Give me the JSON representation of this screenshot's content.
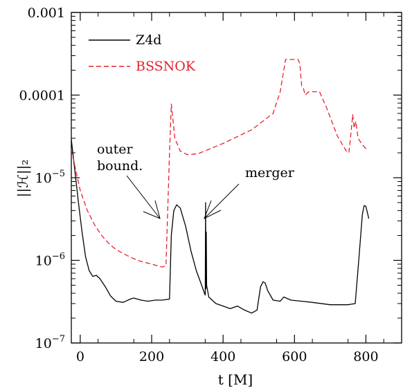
{
  "chart_data": {
    "type": "line",
    "title": "",
    "xlabel": "t [M]",
    "ylabel": "||ℋ||₂",
    "xlim": [
      -25,
      900
    ],
    "ylim": [
      1e-07,
      0.001
    ],
    "y_scale": "log",
    "grid": false,
    "legend_position": "top-left",
    "x_ticks": [
      {
        "value": 0,
        "label": "0"
      },
      {
        "value": 200,
        "label": "200"
      },
      {
        "value": 400,
        "label": "400"
      },
      {
        "value": 600,
        "label": "600"
      },
      {
        "value": 800,
        "label": "800"
      }
    ],
    "y_ticks": [
      {
        "value": 0.001,
        "label": "0.001",
        "sup": ""
      },
      {
        "value": 0.0001,
        "label": "0.0001",
        "sup": ""
      },
      {
        "value": 1e-05,
        "label": "10",
        "sup": "−5"
      },
      {
        "value": 1e-06,
        "label": "10",
        "sup": "−6"
      },
      {
        "value": 1e-07,
        "label": "10",
        "sup": "−7"
      }
    ],
    "series": [
      {
        "name": "Z4d",
        "color": "#000000",
        "style": "solid",
        "points": [
          [
            -25,
            2.9e-05
          ],
          [
            -15,
            1.2e-05
          ],
          [
            -5,
            5e-06
          ],
          [
            5,
            2.2e-06
          ],
          [
            15,
            1.1e-06
          ],
          [
            25,
            7.5e-07
          ],
          [
            35,
            6.4e-07
          ],
          [
            45,
            6.6e-07
          ],
          [
            55,
            6e-07
          ],
          [
            70,
            4.8e-07
          ],
          [
            85,
            3.7e-07
          ],
          [
            100,
            3.2e-07
          ],
          [
            120,
            3.1e-07
          ],
          [
            140,
            3.4e-07
          ],
          [
            150,
            3.5e-07
          ],
          [
            170,
            3.3e-07
          ],
          [
            190,
            3.2e-07
          ],
          [
            210,
            3.3e-07
          ],
          [
            230,
            3.3e-07
          ],
          [
            250,
            3.4e-07
          ],
          [
            255,
            2e-06
          ],
          [
            262,
            4e-06
          ],
          [
            270,
            4.7e-06
          ],
          [
            280,
            4.3e-06
          ],
          [
            295,
            2.6e-06
          ],
          [
            310,
            1.3e-06
          ],
          [
            325,
            7.5e-07
          ],
          [
            340,
            5e-07
          ],
          [
            348,
            4e-07
          ],
          [
            350,
            3.8e-07
          ],
          [
            351,
            5e-06
          ],
          [
            352,
            4.5e-07
          ],
          [
            353,
            2.2e-06
          ],
          [
            354,
            5e-07
          ],
          [
            360,
            3.6e-07
          ],
          [
            380,
            3e-07
          ],
          [
            400,
            2.8e-07
          ],
          [
            420,
            2.6e-07
          ],
          [
            440,
            2.8e-07
          ],
          [
            460,
            2.5e-07
          ],
          [
            480,
            2.3e-07
          ],
          [
            495,
            2.5e-07
          ],
          [
            505,
            4.8e-07
          ],
          [
            512,
            5.5e-07
          ],
          [
            518,
            5.3e-07
          ],
          [
            525,
            4.3e-07
          ],
          [
            540,
            3.3e-07
          ],
          [
            560,
            3.2e-07
          ],
          [
            570,
            3.6e-07
          ],
          [
            590,
            3.3e-07
          ],
          [
            620,
            3.2e-07
          ],
          [
            650,
            3.1e-07
          ],
          [
            700,
            2.9e-07
          ],
          [
            750,
            2.9e-07
          ],
          [
            770,
            3e-07
          ],
          [
            780,
            1e-06
          ],
          [
            790,
            3.6e-06
          ],
          [
            795,
            4.6e-06
          ],
          [
            800,
            4.5e-06
          ],
          [
            808,
            3.2e-06
          ]
        ]
      },
      {
        "name": "BSSNOK",
        "color": "#e8202a",
        "style": "dashed",
        "points": [
          [
            -25,
            2.2e-05
          ],
          [
            -10,
            1.1e-05
          ],
          [
            0,
            7e-06
          ],
          [
            20,
            4e-06
          ],
          [
            40,
            2.7e-06
          ],
          [
            60,
            2e-06
          ],
          [
            80,
            1.6e-06
          ],
          [
            100,
            1.35e-06
          ],
          [
            130,
            1.15e-06
          ],
          [
            160,
            1e-06
          ],
          [
            200,
            9e-07
          ],
          [
            230,
            8.3e-07
          ],
          [
            240,
            8.6e-07
          ],
          [
            250,
            2e-05
          ],
          [
            255,
            7.8e-05
          ],
          [
            258,
            6e-05
          ],
          [
            265,
            3e-05
          ],
          [
            280,
            2.1e-05
          ],
          [
            300,
            1.9e-05
          ],
          [
            330,
            1.95e-05
          ],
          [
            400,
            2.6e-05
          ],
          [
            480,
            3.8e-05
          ],
          [
            540,
            6e-05
          ],
          [
            560,
            0.00011
          ],
          [
            575,
            0.00027
          ],
          [
            610,
            0.00027
          ],
          [
            615,
            0.00024
          ],
          [
            620,
            0.00013
          ],
          [
            625,
            0.00012
          ],
          [
            630,
            0.0001
          ],
          [
            640,
            0.00011
          ],
          [
            670,
            0.00011
          ],
          [
            690,
            7e-05
          ],
          [
            720,
            3.2e-05
          ],
          [
            745,
            2.1e-05
          ],
          [
            752,
            2e-05
          ],
          [
            755,
            2.5e-05
          ],
          [
            763,
            5.8e-05
          ],
          [
            767,
            4e-05
          ],
          [
            772,
            4.8e-05
          ],
          [
            778,
            3e-05
          ],
          [
            790,
            2.5e-05
          ],
          [
            802,
            2.2e-05
          ]
        ]
      }
    ],
    "annotations": [
      {
        "lines": [
          "outer",
          "bound."
        ],
        "x": 240,
        "y": 3.2e-06
      },
      {
        "lines": [
          "merger"
        ],
        "x": 352,
        "y": 3.2e-06
      }
    ]
  }
}
